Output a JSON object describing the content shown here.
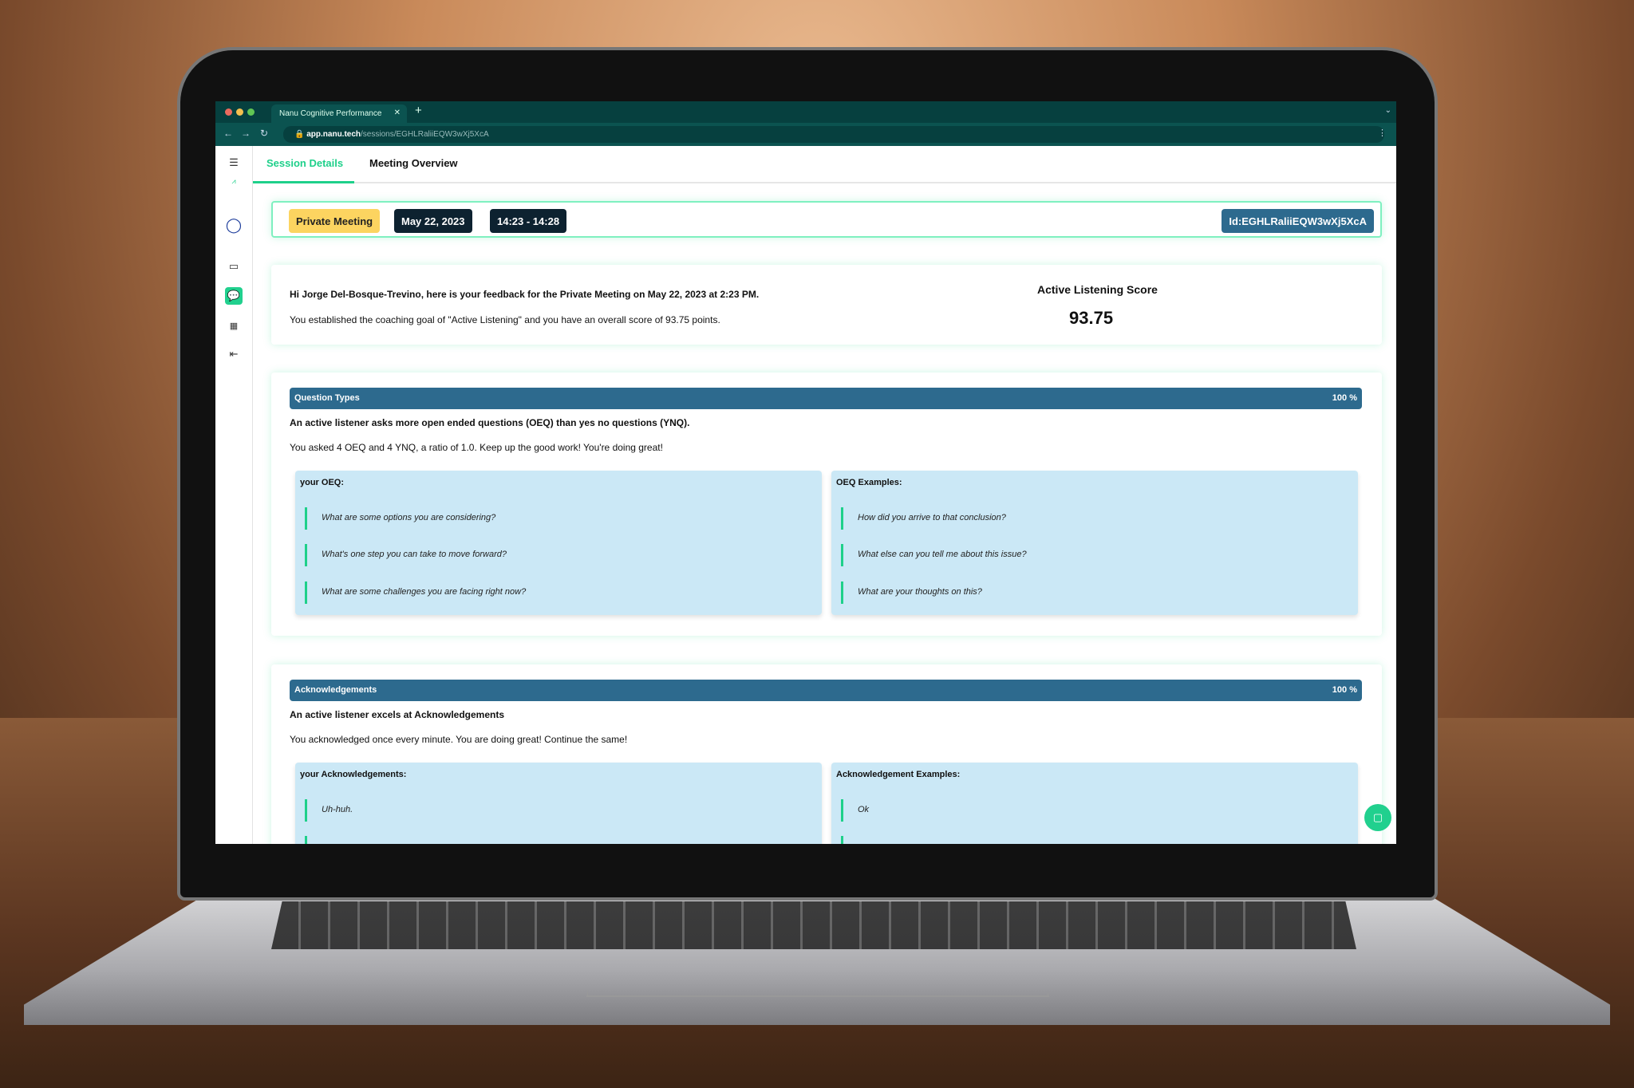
{
  "browser": {
    "tab_title": "Nanu Cognitive Performance",
    "url_host": "app.nanu.tech",
    "url_path": "/sessions/EGHLRaliiEQW3wXj5XcA"
  },
  "tabs": [
    {
      "label": "Session Details",
      "active": true
    },
    {
      "label": "Meeting Overview",
      "active": false
    }
  ],
  "session": {
    "type": "Private Meeting",
    "date": "May 22, 2023",
    "time": "14:23 - 14:28",
    "id": "Id:EGHLRaliiEQW3wXj5XcA"
  },
  "feedback": {
    "greeting": "Hi Jorge Del-Bosque-Trevino, here is your feedback for the Private Meeting on May 22, 2023 at 2:23 PM.",
    "goal": "You established the coaching goal of \"Active Listening\" and you have an overall score of 93.75 points.",
    "score_label": "Active Listening Score",
    "score": "93.75"
  },
  "question_types": {
    "title": "Question Types",
    "percent": "100 %",
    "headline": "An active listener asks more open ended questions (OEQ) than yes no questions (YNQ).",
    "summary": "You asked 4 OEQ and 4 YNQ, a ratio of 1.0. Keep up the good work! You're doing great!",
    "yours_label": "your OEQ:",
    "yours": [
      "What are some options you are considering?",
      "What's one step you can take to move forward?",
      "What are some challenges you are facing right now?"
    ],
    "examples_label": "OEQ Examples:",
    "examples": [
      "How did you arrive to that conclusion?",
      "What else can you tell me about this issue?",
      "What are your thoughts on this?"
    ]
  },
  "acknowledgements": {
    "title": "Acknowledgements",
    "percent": "100 %",
    "headline": "An active listener excels at Acknowledgements",
    "summary": "You acknowledged once every minute. You are doing great! Continue the same!",
    "yours_label": "your Acknowledgements:",
    "yours": [
      "Uh-huh."
    ],
    "examples_label": "Acknowledgement Examples:",
    "examples": [
      "Ok"
    ]
  },
  "colors": {
    "accent": "#21d08e",
    "bar": "#2d6a8e",
    "box": "#cbe8f6",
    "pill_yellow": "#fcd460",
    "pill_dark": "#0d2230",
    "chrome": "#06403f"
  }
}
